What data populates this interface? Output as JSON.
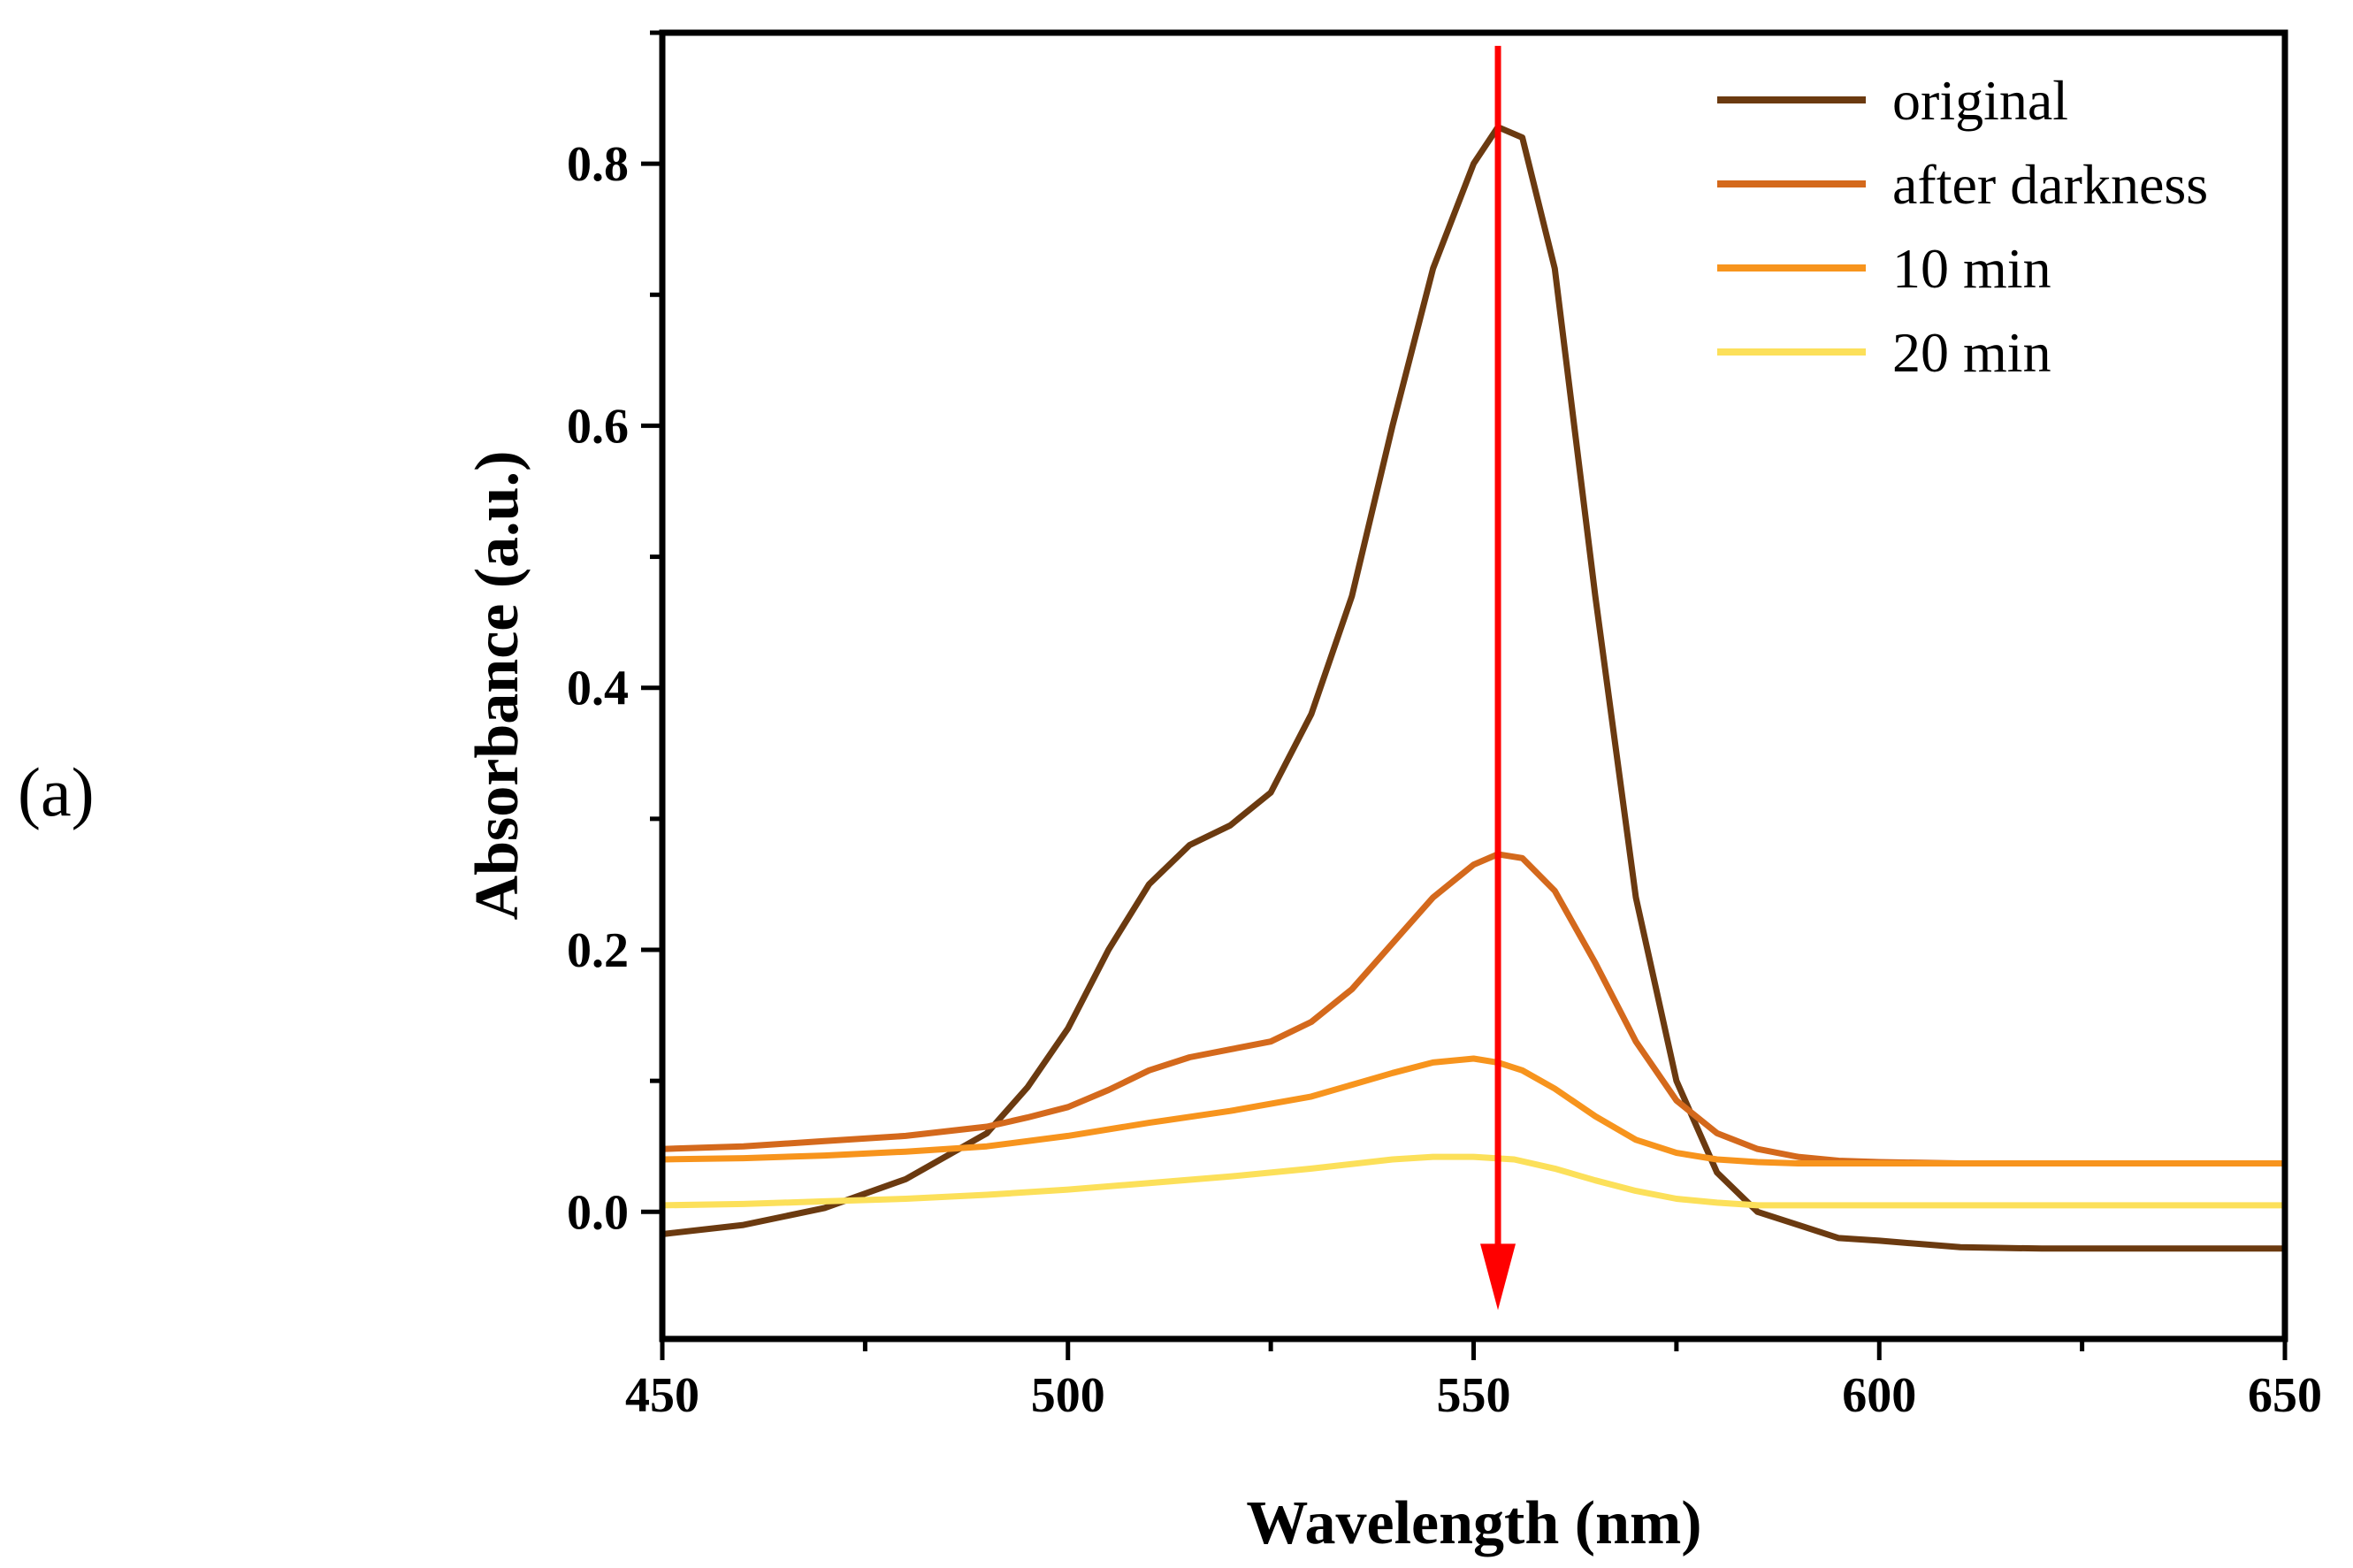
{
  "panel_label": "(a)",
  "chart_data": {
    "type": "line",
    "title": "",
    "xlabel": "Wavelength (nm)",
    "ylabel": "Absorbance (a.u.)",
    "xlim": [
      450,
      650
    ],
    "ylim": [
      -0.097,
      0.9
    ],
    "x_ticks": [
      450,
      500,
      550,
      600,
      650
    ],
    "x_tick_labels": [
      "450",
      "500",
      "550",
      "600",
      "650"
    ],
    "y_ticks": [
      0.0,
      0.2,
      0.4,
      0.6,
      0.8
    ],
    "y_tick_labels": [
      "0.0",
      "0.2",
      "0.4",
      "0.6",
      "0.8"
    ],
    "legend_position": "top-right",
    "series": [
      {
        "name": "original",
        "color": "#6B3A10",
        "x": [
          450,
          460,
          470,
          480,
          490,
          495,
          500,
          505,
          510,
          515,
          520,
          525,
          530,
          535,
          540,
          545,
          550,
          553,
          556,
          560,
          565,
          570,
          575,
          580,
          585,
          590,
          595,
          600,
          610,
          620,
          630,
          640,
          650
        ],
        "y": [
          -0.017,
          -0.01,
          0.003,
          0.025,
          0.06,
          0.095,
          0.14,
          0.2,
          0.25,
          0.28,
          0.295,
          0.32,
          0.38,
          0.47,
          0.6,
          0.72,
          0.8,
          0.828,
          0.82,
          0.72,
          0.47,
          0.24,
          0.1,
          0.03,
          0.0,
          -0.01,
          -0.02,
          -0.022,
          -0.027,
          -0.028,
          -0.028,
          -0.028,
          -0.028
        ]
      },
      {
        "name": "after darkness",
        "color": "#D4691C",
        "x": [
          450,
          460,
          470,
          480,
          490,
          495,
          500,
          505,
          510,
          515,
          520,
          525,
          530,
          535,
          540,
          545,
          550,
          553,
          556,
          560,
          565,
          570,
          575,
          580,
          585,
          590,
          595,
          600,
          610,
          620,
          630,
          640,
          650
        ],
        "y": [
          0.048,
          0.05,
          0.054,
          0.058,
          0.065,
          0.072,
          0.08,
          0.093,
          0.108,
          0.118,
          0.124,
          0.13,
          0.145,
          0.17,
          0.205,
          0.24,
          0.265,
          0.273,
          0.27,
          0.245,
          0.19,
          0.13,
          0.085,
          0.06,
          0.048,
          0.042,
          0.039,
          0.038,
          0.037,
          0.037,
          0.037,
          0.037,
          0.037
        ]
      },
      {
        "name": "10 min",
        "color": "#F7941D",
        "x": [
          450,
          460,
          470,
          480,
          490,
          500,
          510,
          520,
          530,
          535,
          540,
          545,
          550,
          553,
          556,
          560,
          565,
          570,
          575,
          580,
          585,
          590,
          595,
          600,
          610,
          620,
          630,
          640,
          650
        ],
        "y": [
          0.04,
          0.041,
          0.043,
          0.046,
          0.05,
          0.058,
          0.068,
          0.077,
          0.088,
          0.097,
          0.106,
          0.114,
          0.117,
          0.114,
          0.108,
          0.094,
          0.073,
          0.055,
          0.045,
          0.04,
          0.038,
          0.037,
          0.037,
          0.037,
          0.037,
          0.037,
          0.037,
          0.037,
          0.037
        ]
      },
      {
        "name": "20 min",
        "color": "#FCE05A",
        "x": [
          450,
          460,
          470,
          480,
          490,
          500,
          510,
          520,
          530,
          540,
          545,
          550,
          555,
          560,
          565,
          570,
          575,
          580,
          585,
          590,
          600,
          610,
          620,
          630,
          640,
          650
        ],
        "y": [
          0.005,
          0.006,
          0.008,
          0.01,
          0.013,
          0.017,
          0.022,
          0.027,
          0.033,
          0.04,
          0.042,
          0.042,
          0.04,
          0.033,
          0.024,
          0.016,
          0.01,
          0.007,
          0.005,
          0.005,
          0.005,
          0.005,
          0.005,
          0.005,
          0.005,
          0.005
        ]
      }
    ],
    "annotations": [
      {
        "type": "arrow",
        "color": "#FF0000",
        "direction": "down",
        "x": 553,
        "y_start": 0.89,
        "y_end": -0.075
      }
    ]
  }
}
